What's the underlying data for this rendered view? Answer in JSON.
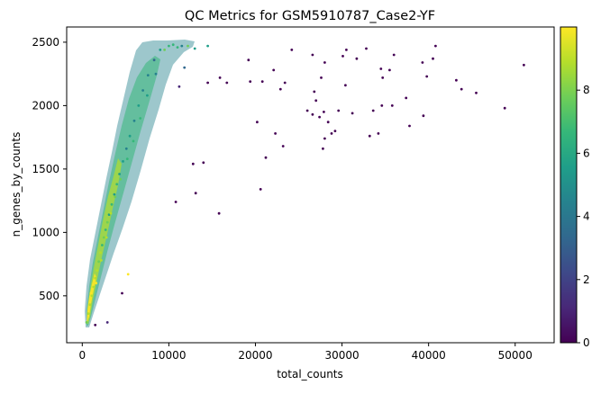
{
  "chart_data": {
    "type": "scatter",
    "title": "QC Metrics for GSM5910787_Case2-YF",
    "xlabel": "total_counts",
    "ylabel": "n_genes_by_counts",
    "xlim": [
      -1800,
      54500
    ],
    "ylim": [
      130,
      2620
    ],
    "xticks": [
      0,
      10000,
      20000,
      30000,
      40000,
      50000
    ],
    "xtick_labels": [
      "0",
      "10000",
      "20000",
      "30000",
      "40000",
      "50000"
    ],
    "yticks": [
      500,
      1000,
      1500,
      2000,
      2500
    ],
    "ytick_labels": [
      "500",
      "1000",
      "1500",
      "2000",
      "2500"
    ],
    "colorbar": {
      "range": [
        0,
        10
      ],
      "ticks": [
        0,
        2,
        4,
        6,
        8
      ],
      "tick_labels": [
        "0",
        "2",
        "4",
        "6",
        "8"
      ],
      "colormap": "viridis",
      "colors": [
        "#440154",
        "#482878",
        "#3e4989",
        "#31688e",
        "#26828e",
        "#1f9e89",
        "#35b779",
        "#6ece58",
        "#b5de2b",
        "#fde725"
      ]
    },
    "grid": false,
    "legend": "colorbar-right",
    "points": [
      {
        "x": 500,
        "y": 290,
        "c": 7.5
      },
      {
        "x": 700,
        "y": 360,
        "c": 8.6
      },
      {
        "x": 900,
        "y": 430,
        "c": 9.1
      },
      {
        "x": 1100,
        "y": 500,
        "c": 8.8
      },
      {
        "x": 1300,
        "y": 570,
        "c": 9.3
      },
      {
        "x": 1500,
        "y": 640,
        "c": 8.4
      },
      {
        "x": 1700,
        "y": 700,
        "c": 9.0
      },
      {
        "x": 1900,
        "y": 770,
        "c": 7.9
      },
      {
        "x": 2100,
        "y": 840,
        "c": 8.7
      },
      {
        "x": 2300,
        "y": 900,
        "c": 7.2
      },
      {
        "x": 2500,
        "y": 960,
        "c": 8.1
      },
      {
        "x": 2700,
        "y": 1020,
        "c": 6.8
      },
      {
        "x": 2900,
        "y": 1080,
        "c": 7.4
      },
      {
        "x": 3100,
        "y": 1140,
        "c": 6.1
      },
      {
        "x": 3400,
        "y": 1220,
        "c": 7.0
      },
      {
        "x": 3700,
        "y": 1300,
        "c": 5.6
      },
      {
        "x": 4000,
        "y": 1380,
        "c": 6.4
      },
      {
        "x": 4300,
        "y": 1460,
        "c": 5.1
      },
      {
        "x": 4700,
        "y": 1560,
        "c": 6.0
      },
      {
        "x": 5100,
        "y": 1660,
        "c": 4.7
      },
      {
        "x": 5500,
        "y": 1760,
        "c": 5.5
      },
      {
        "x": 6000,
        "y": 1880,
        "c": 4.2
      },
      {
        "x": 6500,
        "y": 2000,
        "c": 5.0
      },
      {
        "x": 7000,
        "y": 2120,
        "c": 3.9
      },
      {
        "x": 7600,
        "y": 2240,
        "c": 4.6
      },
      {
        "x": 8300,
        "y": 2360,
        "c": 3.4
      },
      {
        "x": 9000,
        "y": 2440,
        "c": 5.8
      },
      {
        "x": 10000,
        "y": 2470,
        "c": 6.3
      },
      {
        "x": 11000,
        "y": 2460,
        "c": 7.1
      },
      {
        "x": 1000,
        "y": 520,
        "c": 9.5
      },
      {
        "x": 1600,
        "y": 600,
        "c": 9.7
      },
      {
        "x": 2200,
        "y": 780,
        "c": 9.2
      },
      {
        "x": 2800,
        "y": 960,
        "c": 8.9
      },
      {
        "x": 3300,
        "y": 1150,
        "c": 8.5
      },
      {
        "x": 3800,
        "y": 1280,
        "c": 8.0
      },
      {
        "x": 4400,
        "y": 1420,
        "c": 7.6
      },
      {
        "x": 5200,
        "y": 1580,
        "c": 7.2
      },
      {
        "x": 5900,
        "y": 1720,
        "c": 6.6
      },
      {
        "x": 6700,
        "y": 1900,
        "c": 6.2
      },
      {
        "x": 7500,
        "y": 2080,
        "c": 5.4
      },
      {
        "x": 8500,
        "y": 2250,
        "c": 4.8
      },
      {
        "x": 5300,
        "y": 670,
        "c": 9.6
      },
      {
        "x": 4600,
        "y": 520,
        "c": 0.4
      },
      {
        "x": 2900,
        "y": 290,
        "c": 0.6
      },
      {
        "x": 1500,
        "y": 270,
        "c": 0.3
      },
      {
        "x": 10800,
        "y": 1240,
        "c": 0.3
      },
      {
        "x": 13100,
        "y": 1310,
        "c": 0.4
      },
      {
        "x": 15800,
        "y": 1150,
        "c": 0.2
      },
      {
        "x": 14000,
        "y": 1550,
        "c": 0.3
      },
      {
        "x": 12800,
        "y": 1540,
        "c": 0.5
      },
      {
        "x": 20600,
        "y": 1340,
        "c": 0.4
      },
      {
        "x": 21200,
        "y": 1590,
        "c": 0.3
      },
      {
        "x": 23200,
        "y": 1680,
        "c": 0.2
      },
      {
        "x": 22300,
        "y": 1780,
        "c": 0.3
      },
      {
        "x": 20200,
        "y": 1870,
        "c": 0.4
      },
      {
        "x": 19400,
        "y": 2190,
        "c": 0.3
      },
      {
        "x": 19200,
        "y": 2360,
        "c": 0.2
      },
      {
        "x": 20800,
        "y": 2190,
        "c": 0.5
      },
      {
        "x": 22100,
        "y": 2280,
        "c": 0.3
      },
      {
        "x": 22900,
        "y": 2130,
        "c": 0.4
      },
      {
        "x": 23400,
        "y": 2180,
        "c": 0.3
      },
      {
        "x": 24200,
        "y": 2440,
        "c": 0.2
      },
      {
        "x": 14500,
        "y": 2180,
        "c": 0.4
      },
      {
        "x": 15900,
        "y": 2220,
        "c": 0.3
      },
      {
        "x": 16700,
        "y": 2180,
        "c": 0.5
      },
      {
        "x": 26000,
        "y": 1960,
        "c": 0.3
      },
      {
        "x": 26600,
        "y": 1930,
        "c": 0.4
      },
      {
        "x": 27000,
        "y": 2040,
        "c": 0.2
      },
      {
        "x": 27400,
        "y": 1910,
        "c": 0.3
      },
      {
        "x": 27900,
        "y": 1950,
        "c": 0.5
      },
      {
        "x": 28400,
        "y": 1870,
        "c": 0.3
      },
      {
        "x": 28000,
        "y": 1740,
        "c": 0.4
      },
      {
        "x": 28800,
        "y": 1780,
        "c": 0.2
      },
      {
        "x": 29200,
        "y": 1800,
        "c": 0.3
      },
      {
        "x": 27800,
        "y": 1660,
        "c": 0.3
      },
      {
        "x": 26800,
        "y": 2110,
        "c": 0.4
      },
      {
        "x": 29600,
        "y": 1960,
        "c": 0.3
      },
      {
        "x": 30400,
        "y": 2160,
        "c": 0.2
      },
      {
        "x": 31200,
        "y": 1940,
        "c": 0.3
      },
      {
        "x": 33200,
        "y": 1760,
        "c": 0.4
      },
      {
        "x": 34200,
        "y": 1780,
        "c": 0.3
      },
      {
        "x": 33600,
        "y": 1960,
        "c": 0.2
      },
      {
        "x": 34600,
        "y": 2000,
        "c": 0.3
      },
      {
        "x": 35800,
        "y": 2000,
        "c": 0.4
      },
      {
        "x": 37400,
        "y": 2060,
        "c": 0.3
      },
      {
        "x": 37800,
        "y": 1840,
        "c": 0.2
      },
      {
        "x": 39400,
        "y": 1920,
        "c": 0.3
      },
      {
        "x": 26600,
        "y": 2400,
        "c": 0.3
      },
      {
        "x": 27600,
        "y": 2220,
        "c": 0.4
      },
      {
        "x": 28000,
        "y": 2340,
        "c": 0.2
      },
      {
        "x": 30100,
        "y": 2390,
        "c": 0.3
      },
      {
        "x": 30500,
        "y": 2440,
        "c": 0.4
      },
      {
        "x": 31700,
        "y": 2370,
        "c": 0.3
      },
      {
        "x": 32800,
        "y": 2450,
        "c": 0.2
      },
      {
        "x": 34500,
        "y": 2290,
        "c": 0.3
      },
      {
        "x": 34700,
        "y": 2220,
        "c": 0.4
      },
      {
        "x": 35500,
        "y": 2280,
        "c": 0.3
      },
      {
        "x": 36000,
        "y": 2400,
        "c": 0.2
      },
      {
        "x": 39300,
        "y": 2340,
        "c": 0.3
      },
      {
        "x": 39800,
        "y": 2230,
        "c": 0.4
      },
      {
        "x": 40800,
        "y": 2470,
        "c": 0.3
      },
      {
        "x": 40500,
        "y": 2370,
        "c": 0.2
      },
      {
        "x": 43200,
        "y": 2200,
        "c": 0.3
      },
      {
        "x": 43800,
        "y": 2130,
        "c": 0.4
      },
      {
        "x": 45500,
        "y": 2100,
        "c": 0.3
      },
      {
        "x": 48800,
        "y": 1980,
        "c": 0.2
      },
      {
        "x": 51000,
        "y": 2320,
        "c": 0.3
      },
      {
        "x": 9500,
        "y": 2440,
        "c": 8.2
      },
      {
        "x": 10500,
        "y": 2480,
        "c": 6.9
      },
      {
        "x": 11500,
        "y": 2470,
        "c": 4.4
      },
      {
        "x": 12200,
        "y": 2470,
        "c": 7.8
      },
      {
        "x": 13000,
        "y": 2450,
        "c": 5.2
      },
      {
        "x": 14500,
        "y": 2470,
        "c": 6.0
      },
      {
        "x": 11800,
        "y": 2300,
        "c": 3.1
      },
      {
        "x": 11200,
        "y": 2150,
        "c": 1.2
      }
    ]
  }
}
